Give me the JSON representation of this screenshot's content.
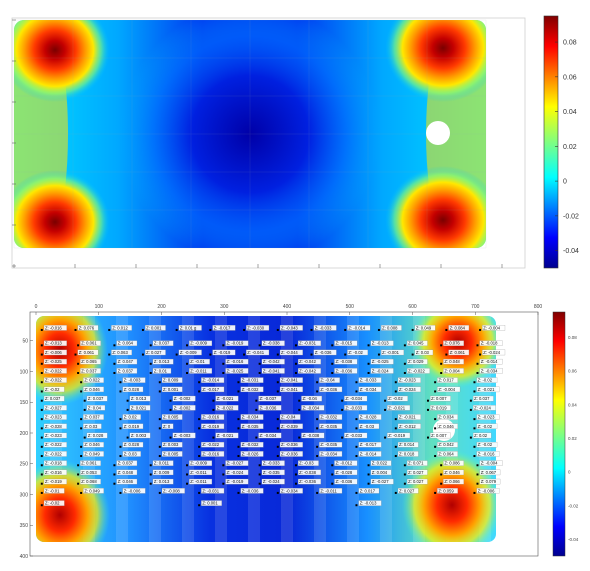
{
  "chart_data": [
    {
      "type": "heatmap",
      "colormap": "jet",
      "colorbar": {
        "range": [
          -0.05,
          0.095
        ],
        "ticks": [
          "0.08",
          "0.06",
          "0.04",
          "0.02",
          "0",
          "-0.02",
          "-0.04"
        ],
        "tick_values": [
          0.08,
          0.06,
          0.04,
          0.02,
          0,
          -0.02,
          -0.04
        ]
      },
      "hotspots": [
        {
          "location": "top-left",
          "value": 0.09
        },
        {
          "location": "top-right",
          "value": 0.09
        },
        {
          "location": "bottom-left",
          "value": 0.09
        },
        {
          "location": "bottom-right",
          "value": 0.09
        }
      ],
      "minimum": {
        "location": "center",
        "value": -0.045
      },
      "hole": "white circular void near right edge, mid-height",
      "grid": true
    },
    {
      "type": "heatmap",
      "colormap": "jet",
      "xlim": [
        0,
        800
      ],
      "ylim": [
        400,
        0
      ],
      "xticks": [
        "0",
        "100",
        "200",
        "300",
        "400",
        "500",
        "600",
        "700",
        "800"
      ],
      "yticks": [
        "50",
        "100",
        "150",
        "200",
        "250",
        "300",
        "350",
        "400"
      ],
      "colorbar": {
        "range": [
          -0.05,
          0.095
        ],
        "ticks": [
          "0.08",
          "0.06",
          "0.04",
          "0.02",
          "0",
          "-0.02",
          "-0.04"
        ],
        "tick_values": [
          0.08,
          0.06,
          0.04,
          0.02,
          0,
          -0.02,
          -0.04
        ]
      },
      "annotation_rows": [
        {
          "y": 30,
          "labels": [
            "Z: -0.016",
            "Z: 0.076",
            "Z: 0.012",
            "Z: 0.001",
            "Z: 0.01 g",
            "Z: -0.017",
            "Z: -0.030",
            "Z: -0.043",
            "Z: -0.033",
            "Z: -0.014",
            "Z: 0.008",
            "Z: 0.049",
            "Z: 0.084",
            "Z: -0.004"
          ]
        },
        {
          "y": 55,
          "labels": [
            "Z: -0.013",
            "Z: 0.061",
            "Z: 0.064",
            "Z: 0.037",
            "Z: -0.009",
            "Z: -0.019",
            "Z: -0.038",
            "Z: -0.031",
            "Z: -0.015",
            "Z: -0.013",
            "Z: 0.045",
            "Z: 0.076",
            "Z: -0.018"
          ]
        },
        {
          "y": 70,
          "labels": [
            "Z: -0.006",
            "Z: 0.061",
            "Z: 0.063",
            "Z: 0.027",
            "Z: -0.009",
            "Z: -0.019",
            "Z: -0.041",
            "Z: -0.044",
            "Z: -0.036",
            "Z: -0.02",
            "Z: -0.001",
            "Z: 0.03",
            "Z: 0.061",
            "Z: -0.024"
          ]
        },
        {
          "y": 85,
          "labels": [
            "Z: -0.025",
            "Z: 0.065",
            "Z: 0.047",
            "Z: 0.013",
            "Z: -0.01",
            "Z: -0.016",
            "Z: -0.042",
            "Z: -0.042",
            "Z: -0.038",
            "Z: -0.025",
            "Z: 0.029",
            "Z: 0.048",
            "Z: -0.014"
          ]
        },
        {
          "y": 100,
          "labels": [
            "Z: -0.022",
            "Z: 0.037",
            "Z: 0.037",
            "Z: 0.01",
            "Z: -0.011",
            "Z: -0.025",
            "Z: -0.041",
            "Z: -0.042",
            "Z: -0.036",
            "Z: -0.024",
            "Z: -0.022",
            "Z: 0.004",
            "Z: -0.034"
          ]
        },
        {
          "y": 115,
          "labels": [
            "Z: -0.022",
            "Z: 0.022",
            "Z: -0.003",
            "Z: 0.009",
            "Z: -0.014",
            "Z: -0.031",
            "Z: -0.041",
            "Z: -0.04",
            "Z: -0.033",
            "Z: -0.023",
            "Z: 0.017",
            "Z: -0.02"
          ]
        },
        {
          "y": 130,
          "labels": [
            "Z: -0.02",
            "Z: 0.046",
            "Z: 0.028",
            "Z: 0.001",
            "Z: -0.017",
            "Z: -0.032",
            "Z: -0.041",
            "Z: -0.036",
            "Z: -0.034",
            "Z: -0.024",
            "Z: -0.004",
            "Z: -0.021"
          ]
        },
        {
          "y": 145,
          "labels": [
            "Z: 0.037",
            "Z: 0.037",
            "Z: 0.013",
            "Z: -0.002",
            "Z: -0.021",
            "Z: -0.037",
            "Z: -0.04",
            "Z: -0.034",
            "Z: -0.02",
            "Z: 0.007",
            "Z: 0.037"
          ]
        },
        {
          "y": 160,
          "labels": [
            "Z: -0.027",
            "Z: 0.04",
            "Z: 0.021",
            "Z: -0.002",
            "Z: -0.022",
            "Z: -0.036",
            "Z: -0.034",
            "Z: -0.033",
            "Z: -0.021",
            "Z: 0.019",
            "Z: -0.024"
          ]
        },
        {
          "y": 175,
          "labels": [
            "Z: -0.023",
            "Z: 0.037",
            "Z: 0.02",
            "Z: 0.005",
            "Z: -0.016",
            "Z: -0.034",
            "Z: -0.04",
            "Z: -0.032",
            "Z: -0.028",
            "Z: -0.021",
            "Z: 0.034",
            "Z: -0.023"
          ]
        },
        {
          "y": 190,
          "labels": [
            "Z: -0.028",
            "Z: 0.03",
            "Z: 0.019",
            "Z: 0",
            "Z: -0.019",
            "Z: -0.035",
            "Z: -0.039",
            "Z: -0.035",
            "Z: -0.03",
            "Z: -0.012",
            "Z: 0.046",
            "Z: -0.02"
          ]
        },
        {
          "y": 205,
          "labels": [
            "Z: -0.023",
            "Z: 0.028",
            "Z: 0.003",
            "Z: -0.003",
            "Z: -0.021",
            "Z: -0.034",
            "Z: -0.038",
            "Z: -0.033",
            "Z: -0.019",
            "Z: 0.007",
            "Z: 0.02"
          ]
        },
        {
          "y": 220,
          "labels": [
            "Z: -0.022",
            "Z: 0.046",
            "Z: 0.028",
            "Z: 0.003",
            "Z: -0.022",
            "Z: -0.032",
            "Z: -0.036",
            "Z: -0.035",
            "Z: -0.017",
            "Z: 0.014",
            "Z: 0.042",
            "Z: -0.02"
          ]
        },
        {
          "y": 235,
          "labels": [
            "Z: -0.022",
            "Z: 0.049",
            "Z: 0.03",
            "Z: 0.005",
            "Z: -0.016",
            "Z: -0.026",
            "Z: -0.036",
            "Z: -0.034",
            "Z: -0.014",
            "Z: 0.018",
            "Z: 0.064",
            "Z: -0.016"
          ]
        },
        {
          "y": 250,
          "labels": [
            "Z: -0.018",
            "Z: 0.061",
            "Z: 0.037",
            "Z: 0.011",
            "Z: -0.009",
            "Z: -0.027",
            "Z: -0.033",
            "Z: -0.03",
            "Z: -0.012",
            "Z: 0.022",
            "Z: 0.071",
            "Z: 0.086",
            "Z: -0.004"
          ]
        },
        {
          "y": 265,
          "labels": [
            "Z: -0.016",
            "Z: 0.053",
            "Z: 0.048",
            "Z: 0.009",
            "Z: -0.011",
            "Z: -0.024",
            "Z: -0.035",
            "Z: -0.038",
            "Z: -0.028",
            "Z: 0.004",
            "Z: 0.027",
            "Z: 0.046",
            "Z: 0.067"
          ]
        },
        {
          "y": 280,
          "labels": [
            "Z: -0.019",
            "Z: 0.068",
            "Z: 0.046",
            "Z: 0.013",
            "Z: -0.011",
            "Z: -0.019",
            "Z: -0.024",
            "Z: -0.036",
            "Z: -0.036",
            "Z: -0.027",
            "Z: 0.027",
            "Z: 0.066",
            "Z: 0.079"
          ]
        },
        {
          "y": 295,
          "labels": [
            "Z: -0.01",
            "Z: 0.049",
            "Z: -0.006",
            "Z: -0.008",
            "Z: -0.031",
            "Z: -0.036",
            "Z: -0.034",
            "Z: -0.011",
            "Z: 0.017",
            "Z: 0.027",
            "Z: 0.059",
            "Z: -0.006"
          ]
        },
        {
          "y": 315,
          "labels": [
            "Z: -0.02",
            "Z: 0.001",
            "Z: -0.013"
          ]
        }
      ]
    }
  ]
}
